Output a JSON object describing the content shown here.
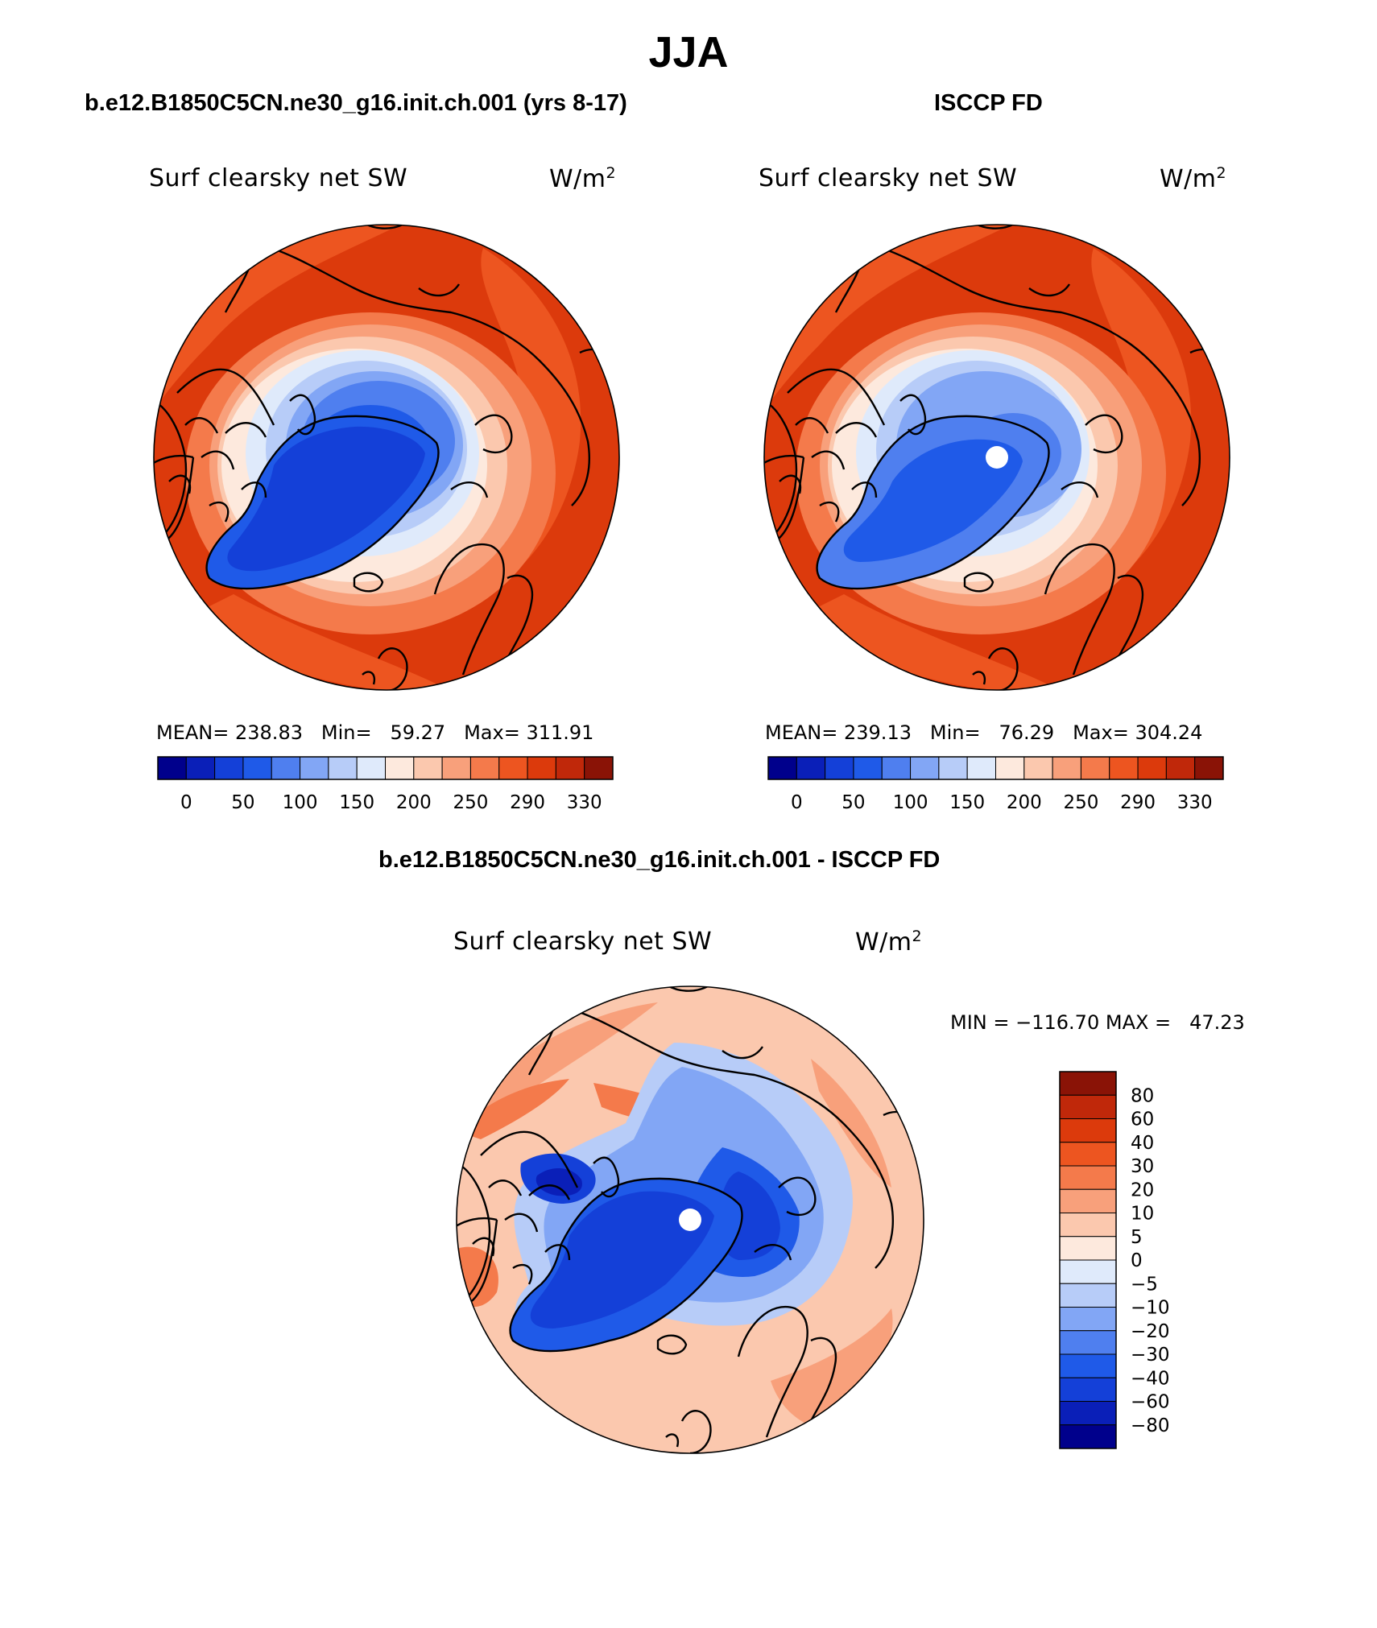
{
  "figure": {
    "season": "JJA"
  },
  "panels": [
    {
      "case_title": "b.e12.B1850C5CN.ne30_g16.init.ch.001 (yrs 8-17)",
      "variable": "Surf clearsky net SW",
      "units": "W/m",
      "units_exp": "2",
      "stats": {
        "mean_label": "MEAN=",
        "mean": "238.83",
        "min_label": "Min=",
        "min": "59.27",
        "max_label": "Max=",
        "max": "311.91"
      }
    },
    {
      "case_title": "ISCCP FD",
      "variable": "Surf clearsky net SW",
      "units": "W/m",
      "units_exp": "2",
      "stats": {
        "mean_label": "MEAN=",
        "mean": "239.13",
        "min_label": "Min=",
        "min": "76.29",
        "max_label": "Max=",
        "max": "304.24"
      }
    },
    {
      "case_title": "b.e12.B1850C5CN.ne30_g16.init.ch.001 - ISCCP FD",
      "variable": "Surf clearsky net SW",
      "units": "W/m",
      "units_exp": "2",
      "stats": {
        "min_label": "MIN =",
        "min": "−116.70",
        "max_label": "MAX =",
        "max": "47.23"
      }
    }
  ],
  "colorbars": {
    "absolute": {
      "colors": [
        "#00008c",
        "#0a1fb8",
        "#1440d8",
        "#1f5ae8",
        "#4f7fef",
        "#82a6f5",
        "#b7ccf8",
        "#dfeafb",
        "#fde9dd",
        "#fbc8ae",
        "#f8a07b",
        "#f47a4b",
        "#ed5520",
        "#dc3a0c",
        "#c0280a",
        "#8a1306"
      ],
      "labels": [
        "0",
        "50",
        "100",
        "150",
        "200",
        "250",
        "290",
        "330"
      ]
    },
    "difference": {
      "colors": [
        "#00008c",
        "#0a1fb8",
        "#1440d8",
        "#1f5ae8",
        "#4f7fef",
        "#82a6f5",
        "#b7ccf8",
        "#dfeafb",
        "#fde9dd",
        "#fbc8ae",
        "#f8a07b",
        "#f47a4b",
        "#ed5520",
        "#dc3a0c",
        "#c0280a",
        "#8a1306"
      ],
      "labels": [
        "−80",
        "−60",
        "−40",
        "−30",
        "−20",
        "−10",
        "−5",
        "0",
        "5",
        "10",
        "20",
        "30",
        "40",
        "60",
        "80"
      ]
    }
  },
  "map_colors": {
    "coast": "#000000",
    "pole_missing": "#ffffff"
  }
}
